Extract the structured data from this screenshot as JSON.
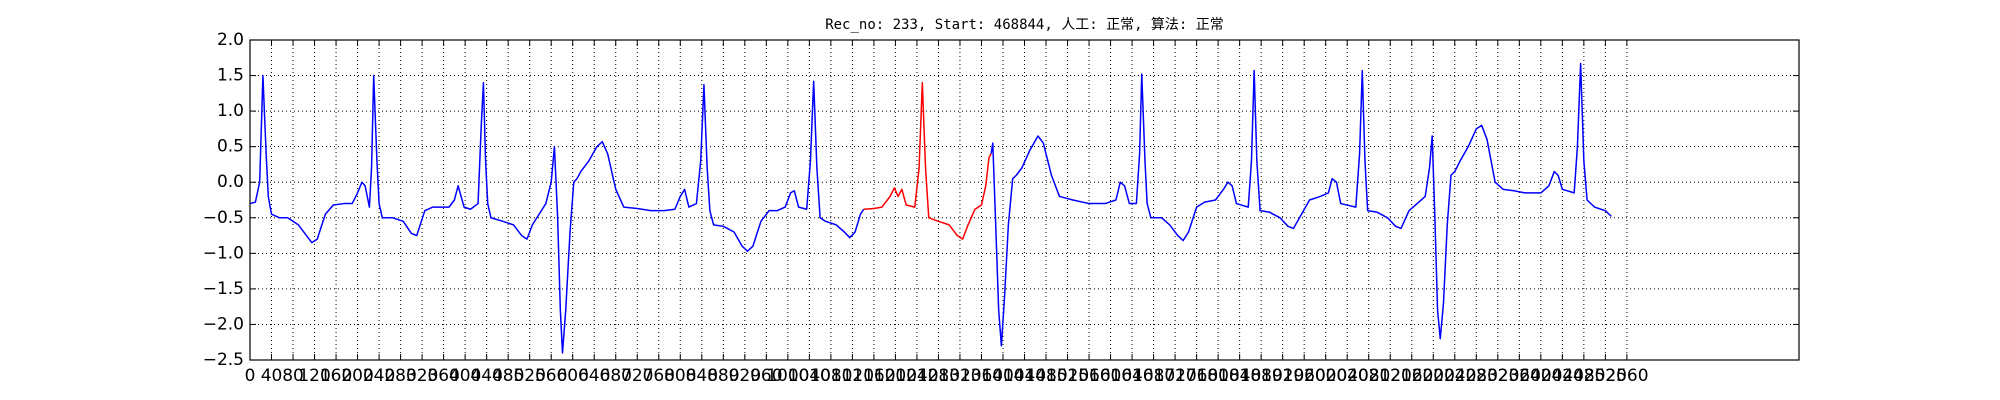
{
  "chart_data": {
    "type": "line",
    "title": "Rec_no: 233, Start: 468844, 人工: 正常, 算法: 正常",
    "xlim": [
      0,
      2880
    ],
    "ylim": [
      -2.5,
      2.0
    ],
    "xticks": [
      0,
      40,
      80,
      120,
      160,
      200,
      240,
      280,
      320,
      360,
      400,
      440,
      480,
      520,
      560,
      600,
      640,
      680,
      720,
      760,
      800,
      840,
      880,
      920,
      960,
      1000,
      1040,
      1080,
      1120,
      1160,
      1200,
      1240,
      1280,
      1320,
      1360,
      1400,
      1440,
      1480,
      1520,
      1560,
      1600,
      1640,
      1680,
      1720,
      1760,
      1800,
      1840,
      1880,
      1920,
      1960,
      2000,
      2040,
      2080,
      2120,
      2160,
      2200,
      2240,
      2280,
      2320,
      2360,
      2400,
      2440,
      2480,
      2520,
      2560
    ],
    "yticks": [
      {
        "value": -2.5,
        "label": "−2.5"
      },
      {
        "value": -2.0,
        "label": "−2.0"
      },
      {
        "value": -1.5,
        "label": "−1.5"
      },
      {
        "value": -1.0,
        "label": "−1.0"
      },
      {
        "value": -0.5,
        "label": "−0.5"
      },
      {
        "value": 0,
        "label": "0.0"
      },
      0.5,
      {
        "value": 1,
        "label": "1.0"
      },
      1.5,
      {
        "value": 2,
        "label": "2.0"
      }
    ],
    "grid": true,
    "series": [
      {
        "color": "#0000ff",
        "x": [
          0,
          10,
          18,
          24,
          30,
          34,
          40,
          55,
          70,
          90,
          105,
          115,
          125,
          140,
          155,
          175,
          190,
          200,
          208,
          214,
          222,
          226,
          230,
          236,
          240,
          246,
          265,
          285,
          300,
          310,
          325,
          340,
          370,
          380,
          387,
          398,
          410,
          424,
          430,
          434,
          438,
          442,
          448,
          470,
          490,
          505,
          515,
          525,
          540,
          550,
          560,
          566,
          572,
          577,
          581,
          587,
          595,
          602,
          608,
          615,
          630,
          645,
          655,
          665,
          680,
          695,
          720,
          745,
          770,
          790,
          800,
          808,
          816,
          830,
          838,
          844,
          850,
          855,
          862,
          880,
          900,
          915,
          925,
          935,
          950,
          965,
          980,
          995,
          1005,
          1012,
          1020,
          1035,
          1042,
          1048,
          1054,
          1060,
          1070,
          1090,
          1105,
          1115,
          1125,
          1135,
          1141,
          1260,
          1378,
          1381,
          1386,
          1392,
          1397,
          1403,
          1410,
          1418,
          1425,
          1435,
          1450,
          1465,
          1475,
          1490,
          1505,
          1530,
          1560,
          1590,
          1610,
          1618,
          1626,
          1635,
          1648,
          1654,
          1658,
          1664,
          1668,
          1675,
          1695,
          1710,
          1725,
          1735,
          1745,
          1760,
          1775,
          1795,
          1810,
          1818,
          1826,
          1834,
          1856,
          1862,
          1867,
          1872,
          1878,
          1895,
          1915,
          1930,
          1940,
          1955,
          1970,
          1990,
          2005,
          2012,
          2020,
          2028,
          2056,
          2063,
          2068,
          2073,
          2078,
          2095,
          2115,
          2130,
          2140,
          2155,
          2170,
          2185,
          2193,
          2198,
          2203,
          2208,
          2213,
          2219,
          2226,
          2233,
          2240,
          2250,
          2265,
          2280,
          2290,
          2300,
          2315,
          2330,
          2350,
          2370,
          2385,
          2400,
          2415,
          2425,
          2432,
          2440,
          2462,
          2468,
          2474,
          2480,
          2486,
          2500,
          2520,
          2531
        ],
        "values": [
          -0.3,
          -0.28,
          0.0,
          1.5,
          0.4,
          -0.2,
          -0.45,
          -0.5,
          -0.5,
          -0.6,
          -0.75,
          -0.85,
          -0.8,
          -0.45,
          -0.32,
          -0.3,
          -0.3,
          -0.15,
          0.0,
          -0.05,
          -0.35,
          0.2,
          1.5,
          0.3,
          -0.3,
          -0.5,
          -0.5,
          -0.55,
          -0.72,
          -0.75,
          -0.4,
          -0.35,
          -0.35,
          -0.25,
          -0.05,
          -0.35,
          -0.38,
          -0.3,
          0.8,
          1.4,
          0.3,
          -0.3,
          -0.5,
          -0.55,
          -0.6,
          -0.75,
          -0.8,
          -0.6,
          -0.42,
          -0.3,
          0.0,
          0.5,
          -0.5,
          -1.8,
          -2.4,
          -1.8,
          -0.7,
          0.0,
          0.05,
          0.15,
          0.3,
          0.5,
          0.57,
          0.4,
          -0.1,
          -0.35,
          -0.37,
          -0.4,
          -0.4,
          -0.38,
          -0.2,
          -0.1,
          -0.35,
          -0.3,
          0.3,
          1.37,
          0.2,
          -0.4,
          -0.6,
          -0.62,
          -0.7,
          -0.9,
          -0.97,
          -0.9,
          -0.55,
          -0.4,
          -0.4,
          -0.35,
          -0.15,
          -0.12,
          -0.35,
          -0.38,
          0.3,
          1.42,
          0.2,
          -0.5,
          -0.55,
          -0.6,
          -0.7,
          -0.78,
          -0.7,
          -0.45,
          -0.38,
          null,
          0.4,
          0.55,
          -0.5,
          -1.8,
          -2.3,
          -1.6,
          -0.6,
          0.05,
          0.1,
          0.2,
          0.45,
          0.65,
          0.55,
          0.1,
          -0.2,
          -0.25,
          -0.3,
          -0.3,
          -0.25,
          0.0,
          -0.05,
          -0.3,
          -0.3,
          0.4,
          1.52,
          0.3,
          -0.3,
          -0.5,
          -0.5,
          -0.6,
          -0.75,
          -0.82,
          -0.7,
          -0.35,
          -0.28,
          -0.25,
          -0.1,
          0.0,
          -0.05,
          -0.3,
          -0.35,
          0.3,
          1.57,
          0.3,
          -0.4,
          -0.42,
          -0.5,
          -0.62,
          -0.65,
          -0.45,
          -0.25,
          -0.2,
          -0.15,
          0.05,
          0.0,
          -0.3,
          -0.35,
          0.4,
          1.57,
          0.3,
          -0.4,
          -0.42,
          -0.5,
          -0.62,
          -0.65,
          -0.4,
          -0.3,
          -0.2,
          0.2,
          0.65,
          -0.5,
          -1.8,
          -2.2,
          -1.7,
          -0.6,
          0.1,
          0.15,
          0.3,
          0.5,
          0.75,
          0.8,
          0.6,
          0.0,
          -0.1,
          -0.12,
          -0.15,
          -0.15,
          -0.15,
          -0.05,
          0.15,
          0.1,
          -0.1,
          -0.15,
          0.5,
          1.67,
          0.3,
          -0.25,
          -0.35,
          -0.4,
          -0.48
        ]
      },
      {
        "color": "#ff0000",
        "x": [
          1141,
          1160,
          1175,
          1190,
          1198,
          1205,
          1212,
          1220,
          1236,
          1244,
          1250,
          1256,
          1262,
          1280,
          1300,
          1315,
          1325,
          1335,
          1348,
          1360,
          1368,
          1374,
          1378
        ],
        "values": [
          -0.38,
          -0.37,
          -0.35,
          -0.2,
          -0.08,
          -0.2,
          -0.1,
          -0.32,
          -0.35,
          0.2,
          1.4,
          0.2,
          -0.5,
          -0.55,
          -0.6,
          -0.75,
          -0.8,
          -0.6,
          -0.38,
          -0.32,
          -0.05,
          0.35,
          0.4
        ]
      }
    ]
  }
}
